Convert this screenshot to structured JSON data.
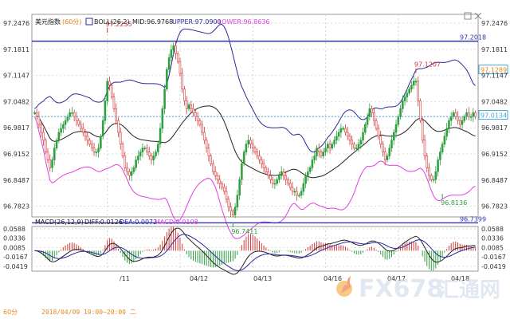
{
  "header": {
    "symbol": "美元指数",
    "period": "(60分)",
    "boll_label": "BOLL(26,2)",
    "mid": "MID:96.9768",
    "upper": "UPPER:97.0900",
    "lower": "LOWER:96.8636"
  },
  "macd_header": {
    "label": "MACD(26,12,9)",
    "diff": "DIFF:0.0126",
    "dea": "DEA:0.0072",
    "macd": "MACD:0.0108"
  },
  "footer": {
    "period_tag": "60分",
    "cursor_time": "2018/04/09 19:00~20:00 二",
    "dates": [
      "/11",
      "04/12",
      "04/13",
      "04/16",
      "04/17",
      "04/18"
    ]
  },
  "watermark": {
    "brand": "FX678",
    "cn": "汇通网"
  },
  "colors": {
    "up": "#2e9e3e",
    "down": "#d23a3a",
    "boll_band": "#2a2a9a",
    "boll_mid": "#222222",
    "lower_band": "#e040e0",
    "hline": "#3333aa",
    "dea": "#2a2aa0",
    "orange": "#e08a20"
  },
  "chart_data": {
    "type": "candlestick",
    "main": {
      "ylim": [
        96.755,
        97.27
      ],
      "yticks": [
        "97.2476",
        "97.1811",
        "97.1147",
        "97.0482",
        "96.9817",
        "96.9152",
        "96.8487",
        "96.7823"
      ],
      "hlines": [
        {
          "value": 97.2018,
          "label": "97.2018"
        },
        {
          "value": 96.7399,
          "label": "96.7399"
        }
      ],
      "right_labels": [
        {
          "value": 97.1289,
          "label": "97.1289"
        },
        {
          "value": 97.0134,
          "label": "97.0134"
        }
      ],
      "annotations": [
        {
          "index": 33,
          "value": 97.2235,
          "label": "97.2235"
        },
        {
          "index": 90,
          "value": 96.7411,
          "label": "96.7411"
        },
        {
          "index": 173,
          "value": 97.1207,
          "label": "97.1207"
        },
        {
          "index": 185,
          "value": 96.8136,
          "label": "96.8136"
        }
      ],
      "close": [
        97.02,
        97.01,
        96.99,
        96.97,
        96.95,
        96.92,
        96.9,
        96.88,
        96.9,
        96.93,
        96.95,
        96.97,
        96.98,
        96.99,
        97,
        97.01,
        97.02,
        97.02,
        97.01,
        97,
        96.99,
        96.98,
        96.97,
        96.96,
        96.95,
        96.94,
        96.93,
        96.92,
        96.92,
        96.93,
        96.96,
        97,
        97.05,
        97.1,
        97.09,
        97.06,
        97.03,
        97,
        96.97,
        96.94,
        96.91,
        96.88,
        96.87,
        96.86,
        96.87,
        96.88,
        96.9,
        96.91,
        96.92,
        96.93,
        96.93,
        96.92,
        96.91,
        96.9,
        96.91,
        96.92,
        96.94,
        96.98,
        97.03,
        97.08,
        97.13,
        97.16,
        97.18,
        97.19,
        97.17,
        97.15,
        97.12,
        97.08,
        97.05,
        97.03,
        97.04,
        97.03,
        97.02,
        97.01,
        97,
        96.99,
        96.97,
        96.95,
        96.93,
        96.91,
        96.89,
        96.87,
        96.86,
        96.85,
        96.84,
        96.83,
        96.82,
        96.8,
        96.78,
        96.77,
        96.76,
        96.78,
        96.81,
        96.85,
        96.89,
        96.92,
        96.94,
        96.95,
        96.94,
        96.93,
        96.92,
        96.91,
        96.9,
        96.89,
        96.88,
        96.87,
        96.86,
        96.85,
        96.84,
        96.84,
        96.85,
        96.86,
        96.87,
        96.86,
        96.85,
        96.84,
        96.83,
        96.82,
        96.82,
        96.81,
        96.81,
        96.82,
        96.84,
        96.86,
        96.87,
        96.88,
        96.9,
        96.91,
        96.93,
        96.92,
        96.91,
        96.92,
        96.93,
        96.94,
        96.93,
        96.94,
        96.95,
        96.96,
        96.97,
        96.98,
        96.98,
        96.97,
        96.96,
        96.95,
        96.94,
        96.93,
        96.93,
        96.94,
        96.95,
        96.97,
        96.99,
        97.01,
        97.03,
        97.02,
        97,
        96.98,
        96.96,
        96.94,
        96.92,
        96.9,
        96.91,
        96.93,
        96.95,
        96.97,
        96.99,
        97.01,
        97.03,
        97.05,
        97.06,
        97.07,
        97.08,
        97.09,
        97.1,
        97.1,
        97.05,
        97,
        96.95,
        96.91,
        96.88,
        96.86,
        96.85,
        96.85,
        96.87,
        96.9,
        96.92,
        96.94,
        96.96,
        96.98,
        97,
        97.01,
        97.02,
        97.01,
        97,
        96.99,
        97,
        97.01,
        97.02,
        97.01,
        97.01,
        97.02,
        97.01
      ]
    },
    "macd": {
      "ylim": [
        -0.055,
        0.065
      ],
      "yticks": [
        "0.0588",
        "0.0336",
        "0.0085",
        "-0.0167",
        "-0.0419"
      ]
    }
  }
}
